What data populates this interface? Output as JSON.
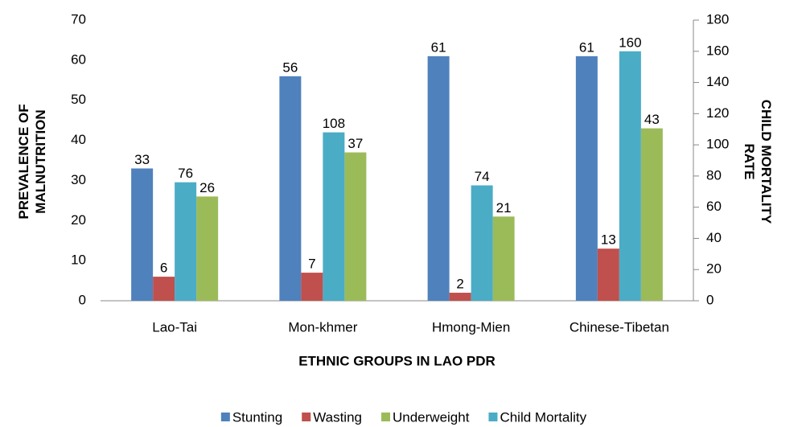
{
  "chart_data": {
    "type": "bar",
    "x_label": "ETHNIC GROUPS IN LAO PDR",
    "y_label": "PREVALENCE OF MALNUTRITION",
    "y2_label": "CHILD MORTALITY RATE",
    "categories": [
      "Lao-Tai",
      "Mon-khmer",
      "Hmong-Mien",
      "Chinese-Tibetan"
    ],
    "series": [
      {
        "name": "Stunting",
        "color": "#4f81bd",
        "values": [
          33,
          56,
          61,
          61
        ]
      },
      {
        "name": "Wasting",
        "color": "#c0504d",
        "values": [
          6,
          7,
          2,
          13
        ]
      },
      {
        "name": "Underweight",
        "color": "#9bbb59",
        "values": [
          26,
          37,
          21,
          43
        ]
      },
      {
        "name": "Child Mortality",
        "color": "#4bacc6",
        "values": [
          76,
          108,
          74,
          160
        ],
        "axis": "y2"
      }
    ],
    "ylim": [
      0,
      70
    ],
    "yticks": [
      0,
      10,
      20,
      30,
      40,
      50,
      60,
      70
    ],
    "y2lim": [
      0,
      180
    ],
    "y2ticks": [
      0,
      20,
      40,
      60,
      80,
      100,
      120,
      140,
      160,
      180
    ],
    "legend": "bottom",
    "grid": false
  }
}
